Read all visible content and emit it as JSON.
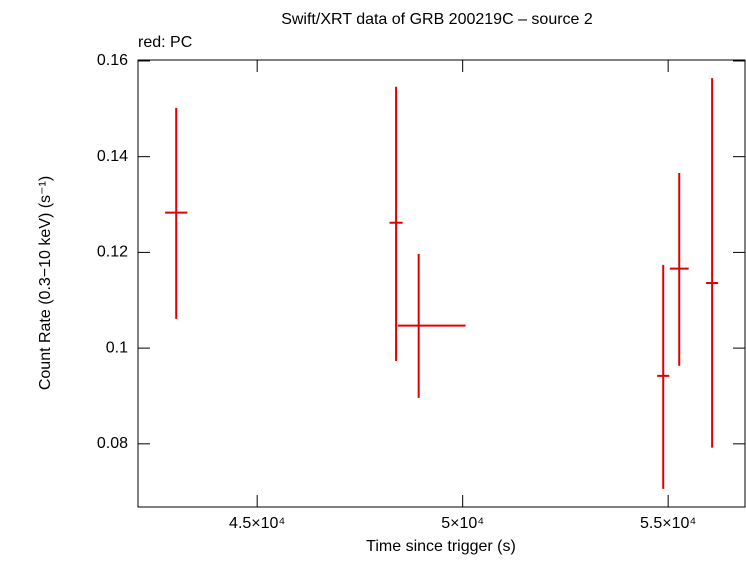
{
  "chart_data": {
    "type": "errorbar",
    "title": "Swift/XRT data of GRB 200219C – source 2",
    "annotation": "red: PC",
    "x_label": "Time since trigger (s)",
    "y_label": "Count Rate (0.3−10 keV) (s⁻¹)",
    "xlim": [
      42100,
      56870
    ],
    "ylim": [
      0.0668,
      0.1602
    ],
    "xticks": [
      {
        "value": 45000,
        "label": "4.5×10⁴"
      },
      {
        "value": 50000,
        "label": "5×10⁴"
      },
      {
        "value": 55000,
        "label": "5.5×10⁴"
      }
    ],
    "yticks": [
      0.08,
      0.1,
      0.12,
      0.14,
      0.16
    ],
    "series": [
      {
        "color": "#e00000",
        "x": [
          43030,
          48380,
          48930,
          54880,
          55270,
          56070
        ],
        "values": [
          0.1283,
          0.1262,
          0.1047,
          0.0942,
          0.1166,
          0.1136
        ],
        "xerr_low": [
          270,
          160,
          510,
          146,
          230,
          146
        ],
        "xerr_high": [
          270,
          160,
          1140,
          146,
          230,
          146
        ],
        "yerr_low": [
          0.0222,
          0.0289,
          0.0151,
          0.0236,
          0.0203,
          0.0344
        ],
        "yerr_high": [
          0.0219,
          0.0284,
          0.015,
          0.0232,
          0.02,
          0.0428
        ]
      }
    ]
  }
}
